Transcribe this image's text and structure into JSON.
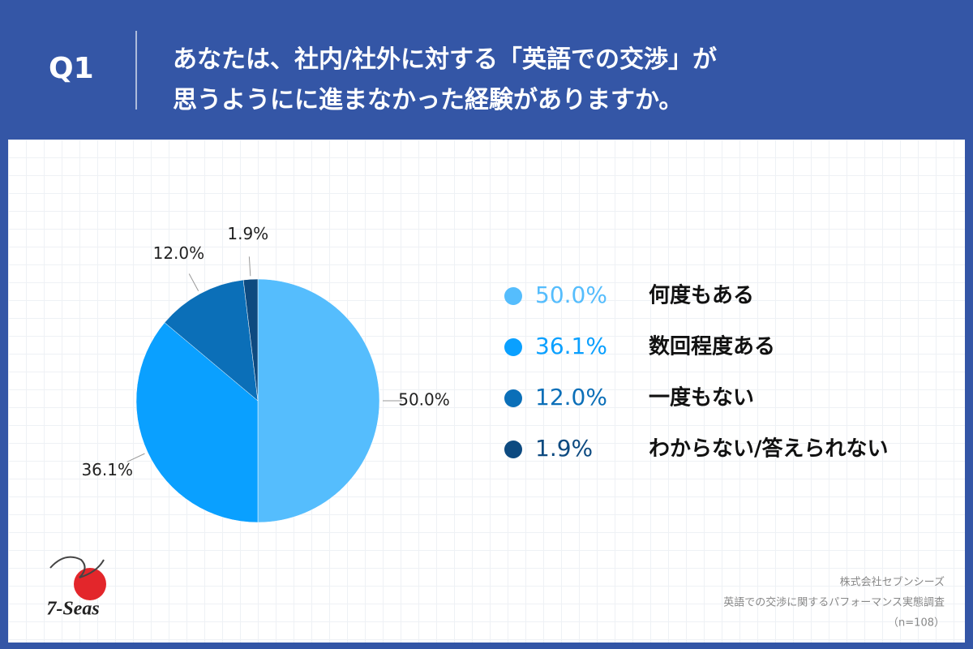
{
  "header": {
    "question": "Q1",
    "title_lines": [
      "あなたは、社内/社外に対する「英語での交渉」が",
      "思うようにに進まなかった経験がありますか。"
    ]
  },
  "chart_data": {
    "type": "pie",
    "categories": [
      "何度もある",
      "数回程度ある",
      "一度もない",
      "わからない/答えられない"
    ],
    "values": [
      50.0,
      36.1,
      12.0,
      1.9
    ],
    "value_labels": [
      "50.0%",
      "36.1%",
      "12.0%",
      "1.9%"
    ],
    "colors": [
      "#55bdfd",
      "#0aa0ff",
      "#0b6fb8",
      "#0d4a80"
    ],
    "legend": "right"
  },
  "footer": {
    "lines": [
      "株式会社セブンシーズ",
      "英語での交渉に関するパフォーマンス実態調査",
      "（n=108）"
    ]
  },
  "logo": {
    "text": "7-Seas"
  }
}
